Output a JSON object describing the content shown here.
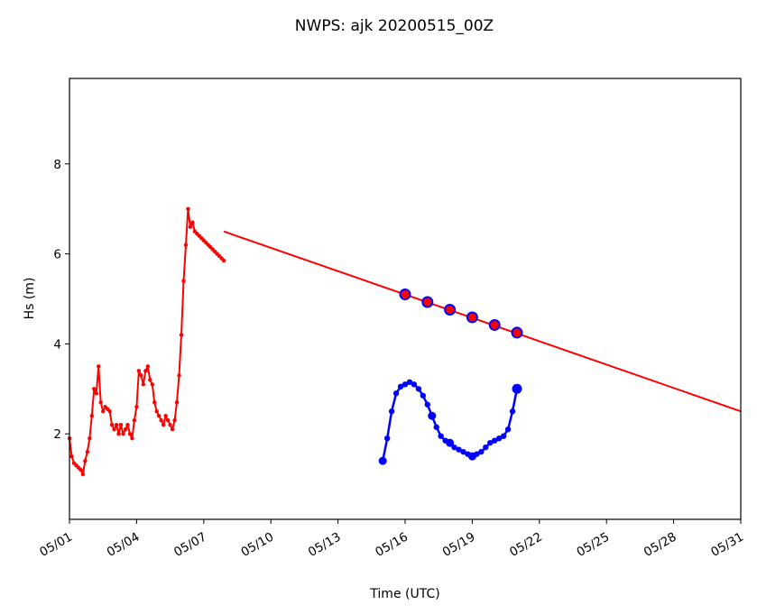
{
  "chart_data": {
    "type": "line",
    "title": "NWPS: ajk 20200515_00Z",
    "xlabel": "Time (UTC)",
    "ylabel": "Hs (m)",
    "x_unit": "days of May 2020 (UTC)",
    "xlim": [
      1,
      31
    ],
    "ylim": [
      0.1,
      9.9
    ],
    "x_ticks": [
      1,
      4,
      7,
      10,
      13,
      16,
      19,
      22,
      25,
      28,
      31
    ],
    "x_tick_labels": [
      "05/01",
      "05/04",
      "05/07",
      "05/10",
      "05/13",
      "05/16",
      "05/19",
      "05/22",
      "05/25",
      "05/28",
      "05/31"
    ],
    "y_ticks": [
      2,
      4,
      6,
      8
    ],
    "y_tick_labels": [
      "2",
      "4",
      "6",
      "8"
    ],
    "grid": false,
    "legend": "none",
    "series": [
      {
        "color": "#ff0000",
        "style": "line with small dot markers",
        "x": [
          1.0,
          1.1,
          1.2,
          1.3,
          1.4,
          1.5,
          1.6,
          1.7,
          1.8,
          1.9,
          2.0,
          2.1,
          2.2,
          2.3,
          2.4,
          2.5,
          2.6,
          2.7,
          2.8,
          2.9,
          3.0,
          3.1,
          3.2,
          3.3,
          3.4,
          3.5,
          3.6,
          3.7,
          3.8,
          3.9,
          4.0,
          4.1,
          4.2,
          4.3,
          4.4,
          4.5,
          4.6,
          4.7,
          4.8,
          4.9,
          5.0,
          5.1,
          5.2,
          5.3,
          5.4,
          5.5,
          5.6,
          5.7,
          5.8,
          5.9,
          6.0,
          6.1,
          6.2,
          6.3,
          6.4,
          6.5,
          6.6,
          6.7,
          6.8,
          6.9,
          7.0,
          7.1,
          7.2,
          7.3,
          7.4,
          7.5,
          7.6,
          7.7,
          7.8,
          7.9
        ],
        "y": [
          1.9,
          1.5,
          1.35,
          1.3,
          1.25,
          1.2,
          1.1,
          1.4,
          1.6,
          1.9,
          2.4,
          3.0,
          2.9,
          3.5,
          2.7,
          2.5,
          2.6,
          2.55,
          2.5,
          2.2,
          2.1,
          2.2,
          2.0,
          2.2,
          2.0,
          2.1,
          2.2,
          2.0,
          1.9,
          2.3,
          2.6,
          3.4,
          3.3,
          3.1,
          3.4,
          3.5,
          3.2,
          3.1,
          2.7,
          2.5,
          2.4,
          2.3,
          2.2,
          2.4,
          2.3,
          2.2,
          2.1,
          2.3,
          2.7,
          3.3,
          4.2,
          5.4,
          6.2,
          7.0,
          6.6,
          6.7,
          6.5,
          6.45,
          6.4,
          6.35,
          6.3,
          6.25,
          6.2,
          6.15,
          6.1,
          6.05,
          6.0,
          5.95,
          5.9,
          5.85
        ]
      },
      {
        "color": "#ff0000",
        "style": "line",
        "x": [
          7.9,
          31.0
        ],
        "y": [
          6.5,
          2.5
        ]
      },
      {
        "color": "#0000ff",
        "style": "line with dense dot markers",
        "x": [
          15.0,
          15.2,
          15.4,
          15.6,
          15.8,
          16.0,
          16.2,
          16.4,
          16.6,
          16.8,
          17.0,
          17.2,
          17.4,
          17.6,
          17.8,
          18.0,
          18.2,
          18.4,
          18.6,
          18.8,
          19.0,
          19.2,
          19.4,
          19.6,
          19.8,
          20.0,
          20.2,
          20.4,
          20.6,
          20.8,
          21.0
        ],
        "y": [
          1.4,
          1.9,
          2.5,
          2.9,
          3.05,
          3.1,
          3.15,
          3.1,
          3.0,
          2.85,
          2.65,
          2.4,
          2.15,
          1.95,
          1.85,
          1.8,
          1.7,
          1.65,
          1.6,
          1.55,
          1.5,
          1.55,
          1.6,
          1.7,
          1.8,
          1.85,
          1.9,
          1.95,
          2.1,
          2.5,
          3.0
        ]
      },
      {
        "color": "#0000ff",
        "style": "markers only (blue circles with red centers)",
        "x": [
          16,
          17,
          18,
          19,
          20,
          21
        ],
        "y": [
          5.1,
          4.93,
          4.76,
          4.59,
          4.42,
          4.25
        ]
      }
    ]
  }
}
